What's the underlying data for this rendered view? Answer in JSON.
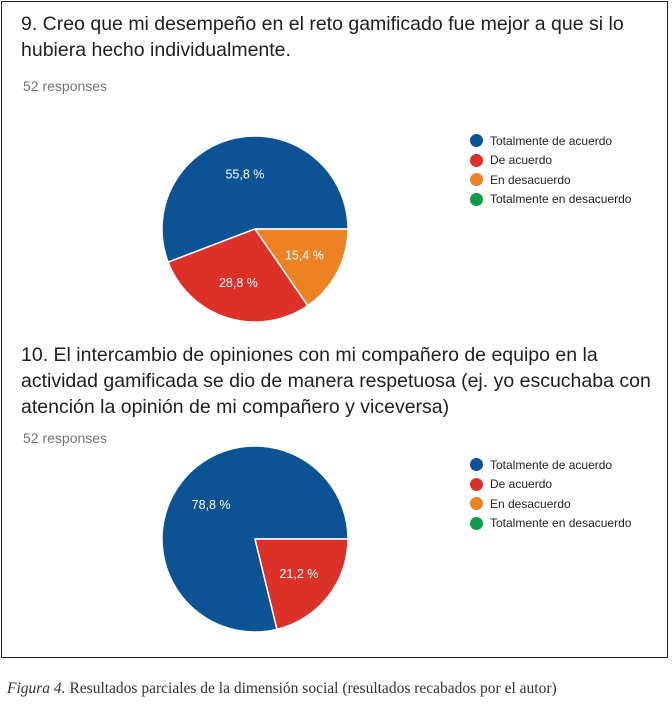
{
  "colors": {
    "totalmente_de_acuerdo": "#0b5394",
    "de_acuerdo": "#dc3028",
    "en_desacuerdo": "#ec8223",
    "totalmente_en_desacuerdo": "#0f9d4a"
  },
  "legend_labels": [
    "Totalmente de acuerdo",
    "De acuerdo",
    "En desacuerdo",
    "Totalmente en desacuerdo"
  ],
  "chart_data": [
    {
      "type": "pie",
      "title": "9. Creo que mi desempeño en el reto gamificado fue mejor a que si lo hubiera hecho individualmente.",
      "subtitle": "52 responses",
      "categories": [
        "Totalmente de acuerdo",
        "De acuerdo",
        "En desacuerdo",
        "Totalmente en desacuerdo"
      ],
      "values": [
        55.8,
        28.8,
        15.4,
        0
      ],
      "labels": [
        "55,8 %",
        "28,8 %",
        "15,4 %",
        ""
      ],
      "legend_position": "right"
    },
    {
      "type": "pie",
      "title": "10. El intercambio de opiniones con mi compañero de equipo en la actividad gamificada se dio de manera respetuosa (ej. yo escuchaba con atención la opinión de mi compañero y viceversa)",
      "subtitle": "52 responses",
      "categories": [
        "Totalmente de acuerdo",
        "De acuerdo",
        "En desacuerdo",
        "Totalmente en desacuerdo"
      ],
      "values": [
        78.8,
        21.2,
        0,
        0
      ],
      "labels": [
        "78,8 %",
        "21,2 %",
        "",
        ""
      ],
      "legend_position": "right"
    }
  ],
  "caption": {
    "figure": "Figura 4.",
    "text": " Resultados parciales de la dimensión social (resultados recabados por el autor)"
  }
}
